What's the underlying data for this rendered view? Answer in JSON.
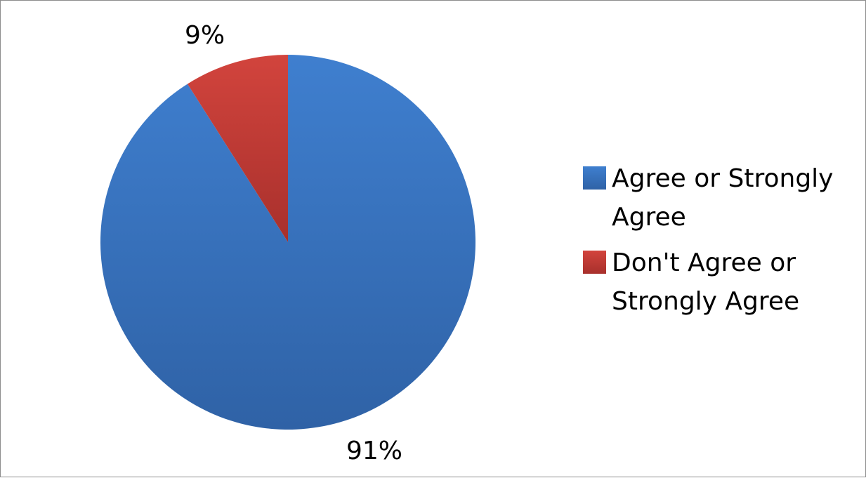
{
  "chart_data": {
    "type": "pie",
    "categories": [
      "Agree or Strongly Agree",
      "Don't Agree or Strongly Agree"
    ],
    "values": [
      91,
      9
    ],
    "data_labels": [
      "91%",
      "9%"
    ],
    "colors": [
      "#3a78c8",
      "#c8413c"
    ],
    "legend_position": "right"
  }
}
